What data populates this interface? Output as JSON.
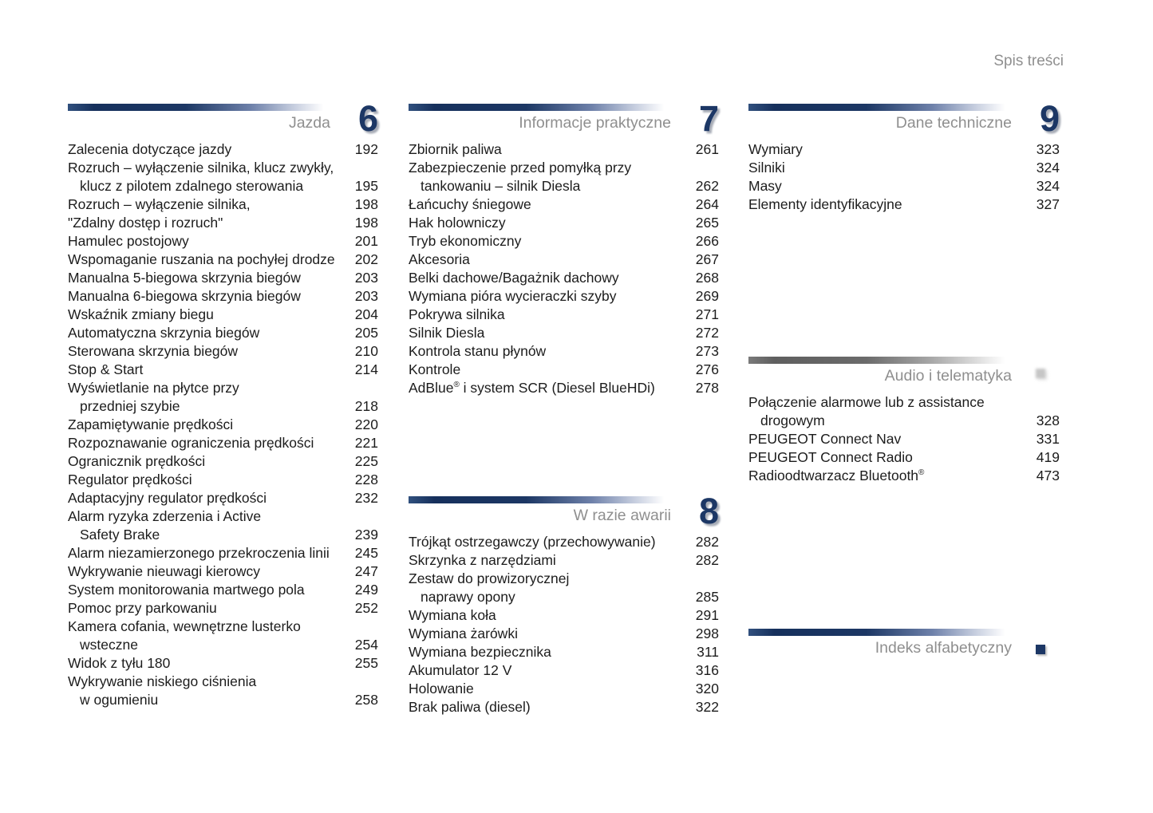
{
  "page_header": "Spis treści",
  "colors": {
    "chapter_navy": "#1c3765",
    "title_gray": "#8f8f8f",
    "entry_text": "#1c1c1c"
  },
  "sections": [
    {
      "id": "jazda",
      "title": "Jazda",
      "number": "6",
      "bar": "navy",
      "entries": [
        {
          "lines": [
            "Zalecenia dotyczące jazdy"
          ],
          "page": "192"
        },
        {
          "lines": [
            "Rozruch – wyłączenie silnika, klucz zwykły,",
            "klucz z pilotem zdalnego sterowania"
          ],
          "page": "195"
        },
        {
          "lines": [
            "Rozruch – wyłączenie silnika,"
          ],
          "page": "198"
        },
        {
          "lines": [
            "\"Zdalny dostęp i rozruch\""
          ],
          "page": "198"
        },
        {
          "lines": [
            "Hamulec postojowy"
          ],
          "page": "201"
        },
        {
          "lines": [
            "Wspomaganie ruszania na pochyłej drodze"
          ],
          "page": "202"
        },
        {
          "lines": [
            "Manualna 5-biegowa skrzynia biegów"
          ],
          "page": "203"
        },
        {
          "lines": [
            "Manualna 6-biegowa skrzynia biegów"
          ],
          "page": "203"
        },
        {
          "lines": [
            "Wskaźnik zmiany biegu"
          ],
          "page": "204"
        },
        {
          "lines": [
            "Automatyczna skrzynia biegów"
          ],
          "page": "205"
        },
        {
          "lines": [
            "Sterowana skrzynia biegów"
          ],
          "page": "210"
        },
        {
          "lines": [
            "Stop & Start"
          ],
          "page": "214"
        },
        {
          "lines": [
            "Wyświetlanie na płytce przy",
            "przedniej szybie"
          ],
          "page": "218"
        },
        {
          "lines": [
            "Zapamiętywanie prędkości"
          ],
          "page": "220"
        },
        {
          "lines": [
            "Rozpoznawanie ograniczenia prędkości"
          ],
          "page": "221"
        },
        {
          "lines": [
            "Ogranicznik prędkości"
          ],
          "page": "225"
        },
        {
          "lines": [
            "Regulator prędkości"
          ],
          "page": "228"
        },
        {
          "lines": [
            "Adaptacyjny regulator prędkości"
          ],
          "page": "232"
        },
        {
          "lines": [
            "Alarm ryzyka zderzenia i Active",
            "Safety Brake"
          ],
          "page": "239"
        },
        {
          "lines": [
            "Alarm niezamierzonego przekroczenia linii"
          ],
          "page": "245"
        },
        {
          "lines": [
            "Wykrywanie nieuwagi kierowcy"
          ],
          "page": "247"
        },
        {
          "lines": [
            "System monitorowania martwego pola"
          ],
          "page": "249"
        },
        {
          "lines": [
            "Pomoc przy parkowaniu"
          ],
          "page": "252"
        },
        {
          "lines": [
            "Kamera cofania, wewnętrzne lusterko",
            "wsteczne"
          ],
          "page": "254"
        },
        {
          "lines": [
            "Widok z tyłu 180"
          ],
          "page": "255"
        },
        {
          "lines": [
            "Wykrywanie niskiego ciśnienia",
            "w ogumieniu"
          ],
          "page": "258"
        }
      ]
    },
    {
      "id": "praktyczne",
      "title": "Informacje praktyczne",
      "number": "7",
      "bar": "navy",
      "entries": [
        {
          "lines": [
            "Zbiornik paliwa"
          ],
          "page": "261"
        },
        {
          "lines": [
            "Zabezpieczenie przed pomyłką przy",
            "tankowaniu – silnik Diesla"
          ],
          "page": "262"
        },
        {
          "lines": [
            "Łańcuchy śniegowe"
          ],
          "page": "264"
        },
        {
          "lines": [
            "Hak holowniczy"
          ],
          "page": "265"
        },
        {
          "lines": [
            "Tryb ekonomiczny"
          ],
          "page": "266"
        },
        {
          "lines": [
            "Akcesoria"
          ],
          "page": "267"
        },
        {
          "lines": [
            "Belki dachowe/Bagażnik dachowy"
          ],
          "page": "268"
        },
        {
          "lines": [
            "Wymiana pióra wycieraczki szyby"
          ],
          "page": "269"
        },
        {
          "lines": [
            "Pokrywa silnika"
          ],
          "page": "271"
        },
        {
          "lines": [
            "Silnik Diesla"
          ],
          "page": "272"
        },
        {
          "lines": [
            "Kontrola stanu płynów"
          ],
          "page": "273"
        },
        {
          "lines": [
            "Kontrole"
          ],
          "page": "276"
        },
        {
          "lines": [
            "AdBlue® i system SCR (Diesel BlueHDi)"
          ],
          "page": "278"
        }
      ]
    },
    {
      "id": "awaria",
      "title": "W razie awarii",
      "number": "8",
      "bar": "navy",
      "entries": [
        {
          "lines": [
            "Trójkąt ostrzegawczy (przechowywanie)"
          ],
          "page": "282"
        },
        {
          "lines": [
            "Skrzynka z narzędziami"
          ],
          "page": "282"
        },
        {
          "lines": [
            "Zestaw do prowizorycznej",
            "naprawy opony"
          ],
          "page": "285"
        },
        {
          "lines": [
            "Wymiana koła"
          ],
          "page": "291"
        },
        {
          "lines": [
            "Wymiana żarówki"
          ],
          "page": "298"
        },
        {
          "lines": [
            "Wymiana bezpiecznika"
          ],
          "page": "311"
        },
        {
          "lines": [
            "Akumulator 12 V"
          ],
          "page": "316"
        },
        {
          "lines": [
            "Holowanie"
          ],
          "page": "320"
        },
        {
          "lines": [
            "Brak paliwa (diesel)"
          ],
          "page": "322"
        }
      ]
    },
    {
      "id": "dane",
      "title": "Dane techniczne",
      "number": "9",
      "bar": "navy",
      "entries": [
        {
          "lines": [
            "Wymiary"
          ],
          "page": "323"
        },
        {
          "lines": [
            "Silniki"
          ],
          "page": "324"
        },
        {
          "lines": [
            "Masy"
          ],
          "page": "324"
        },
        {
          "lines": [
            "Elementy identyfikacyjne"
          ],
          "page": "327"
        }
      ]
    },
    {
      "id": "audio",
      "title": "Audio i telematyka",
      "bar": "gray",
      "marker": "faded-square",
      "entries": [
        {
          "lines": [
            "Połączenie alarmowe lub z assistance",
            "drogowym"
          ],
          "page": "328"
        },
        {
          "lines": [
            "PEUGEOT Connect Nav"
          ],
          "page": "331"
        },
        {
          "lines": [
            "PEUGEOT Connect Radio"
          ],
          "page": "419"
        },
        {
          "lines": [
            "Radioodtwarzacz Bluetooth®"
          ],
          "page": "473"
        }
      ]
    },
    {
      "id": "indeks",
      "title": "Indeks alfabetyczny",
      "bar": "navy",
      "marker": "navy-square",
      "entries": []
    }
  ]
}
